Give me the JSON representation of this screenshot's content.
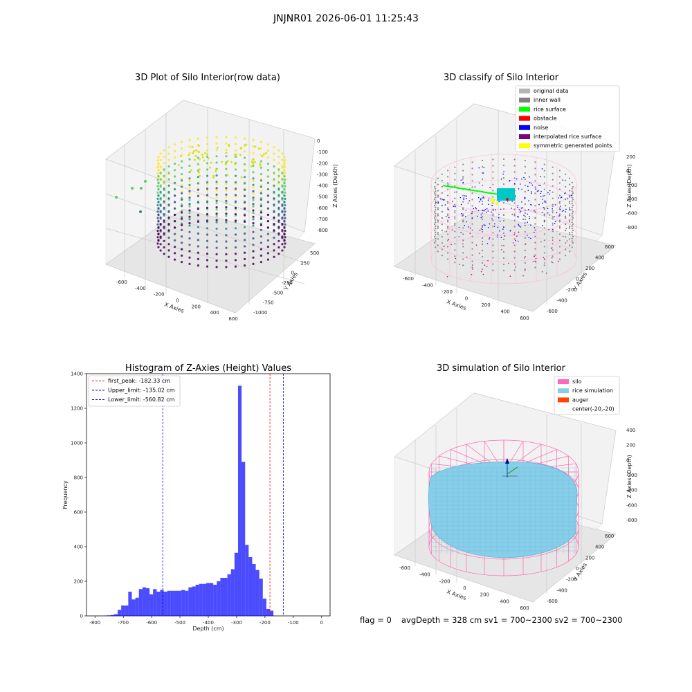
{
  "suptitle": "JNJNR01 2026-06-01 11:25:43",
  "panels": {
    "raw": {
      "title": "3D Plot of Silo Interior(row data)",
      "xlabel": "X Axies",
      "ylabel": "Y Axies",
      "zlabel": "Z Axies (Depth)",
      "xticks": [
        "-600",
        "-400",
        "-200",
        "0",
        "200",
        "400",
        "600"
      ],
      "yticks": [
        "500",
        "250",
        "0",
        "-250",
        "-500",
        "-750",
        "-1000"
      ],
      "zticks": [
        "0",
        "-100",
        "-200",
        "-300",
        "-400",
        "-500",
        "-600",
        "-700",
        "-800"
      ]
    },
    "classify": {
      "title": "3D classify of Silo Interior",
      "xlabel": "X Axies",
      "ylabel": "Y Axies",
      "zlabel": "Z Axies (Depth)",
      "xticks": [
        "-600",
        "-400",
        "-200",
        "0",
        "200",
        "400",
        "600"
      ],
      "yticks": [
        "600",
        "400",
        "200",
        "0",
        "-200",
        "-400",
        "-600"
      ],
      "zticks": [
        "200",
        "0",
        "-200",
        "-400",
        "-600",
        "-800"
      ],
      "legend": [
        {
          "label": "original data",
          "color": "#b4b4b4"
        },
        {
          "label": "inner wall",
          "color": "#808080"
        },
        {
          "label": "rice surface",
          "color": "#00ff00"
        },
        {
          "label": "obstacle",
          "color": "#ff0000"
        },
        {
          "label": "noise",
          "color": "#0000ff"
        },
        {
          "label": "interpolated rice surface",
          "color": "#800080"
        },
        {
          "label": "symmetric generated points",
          "color": "#ffff00"
        }
      ]
    },
    "simulation": {
      "title": "3D simulation of Silo Interior",
      "xlabel": "X Axies",
      "ylabel": "Y Axies",
      "zlabel": "Z Axies (Depth)",
      "xticks": [
        "-600",
        "-400",
        "-200",
        "0",
        "200",
        "400",
        "600"
      ],
      "yticks": [
        "600",
        "400",
        "200",
        "0",
        "-200",
        "-400",
        "-600"
      ],
      "zticks": [
        "400",
        "200",
        "0",
        "-200",
        "-400",
        "-600",
        "-800"
      ],
      "legend": [
        {
          "label": "silo",
          "color": "#ff69b4"
        },
        {
          "label": "rice simulation",
          "color": "#87ceeb"
        },
        {
          "label": "auger",
          "color": "#ff4500"
        },
        {
          "label": "center(-20,-20)",
          "color": ""
        }
      ]
    }
  },
  "footer": {
    "flag": "flag = 0",
    "avg": "avgDepth = 328 cm  sv1 = 700~2300  sv2 = 700~2300"
  },
  "chart_data": [
    {
      "type": "bar",
      "title": "Histogram of Z-Axies (Height) Values",
      "xlabel": "Depth (cm)",
      "ylabel": "Frequency",
      "xlim": [
        -830,
        30
      ],
      "ylim": [
        0,
        1400
      ],
      "xticks": [
        -800,
        -700,
        -600,
        -500,
        -400,
        -300,
        -200,
        -100,
        0
      ],
      "yticks": [
        0,
        200,
        400,
        600,
        800,
        1000,
        1200,
        1400
      ],
      "bar_color": "#0000ff",
      "bin_start": -770,
      "bin_width": 12.5,
      "values": [
        2,
        3,
        5,
        10,
        35,
        60,
        60,
        140,
        95,
        105,
        155,
        165,
        160,
        125,
        155,
        140,
        150,
        140,
        145,
        145,
        145,
        145,
        150,
        145,
        165,
        170,
        180,
        185,
        185,
        190,
        190,
        180,
        200,
        220,
        220,
        240,
        270,
        365,
        1330,
        890,
        410,
        340,
        300,
        265,
        215,
        100,
        40,
        30
      ],
      "vlines": [
        {
          "label": "first_peak: -182.33 cm",
          "x": -182.33,
          "color": "#ff0000"
        },
        {
          "label": "Upper_limit: -135.02 cm",
          "x": -135.02,
          "color": "#0000ff"
        },
        {
          "label": "Lower_limit: -560.82 cm",
          "x": -560.82,
          "color": "#0000ff"
        }
      ]
    }
  ]
}
